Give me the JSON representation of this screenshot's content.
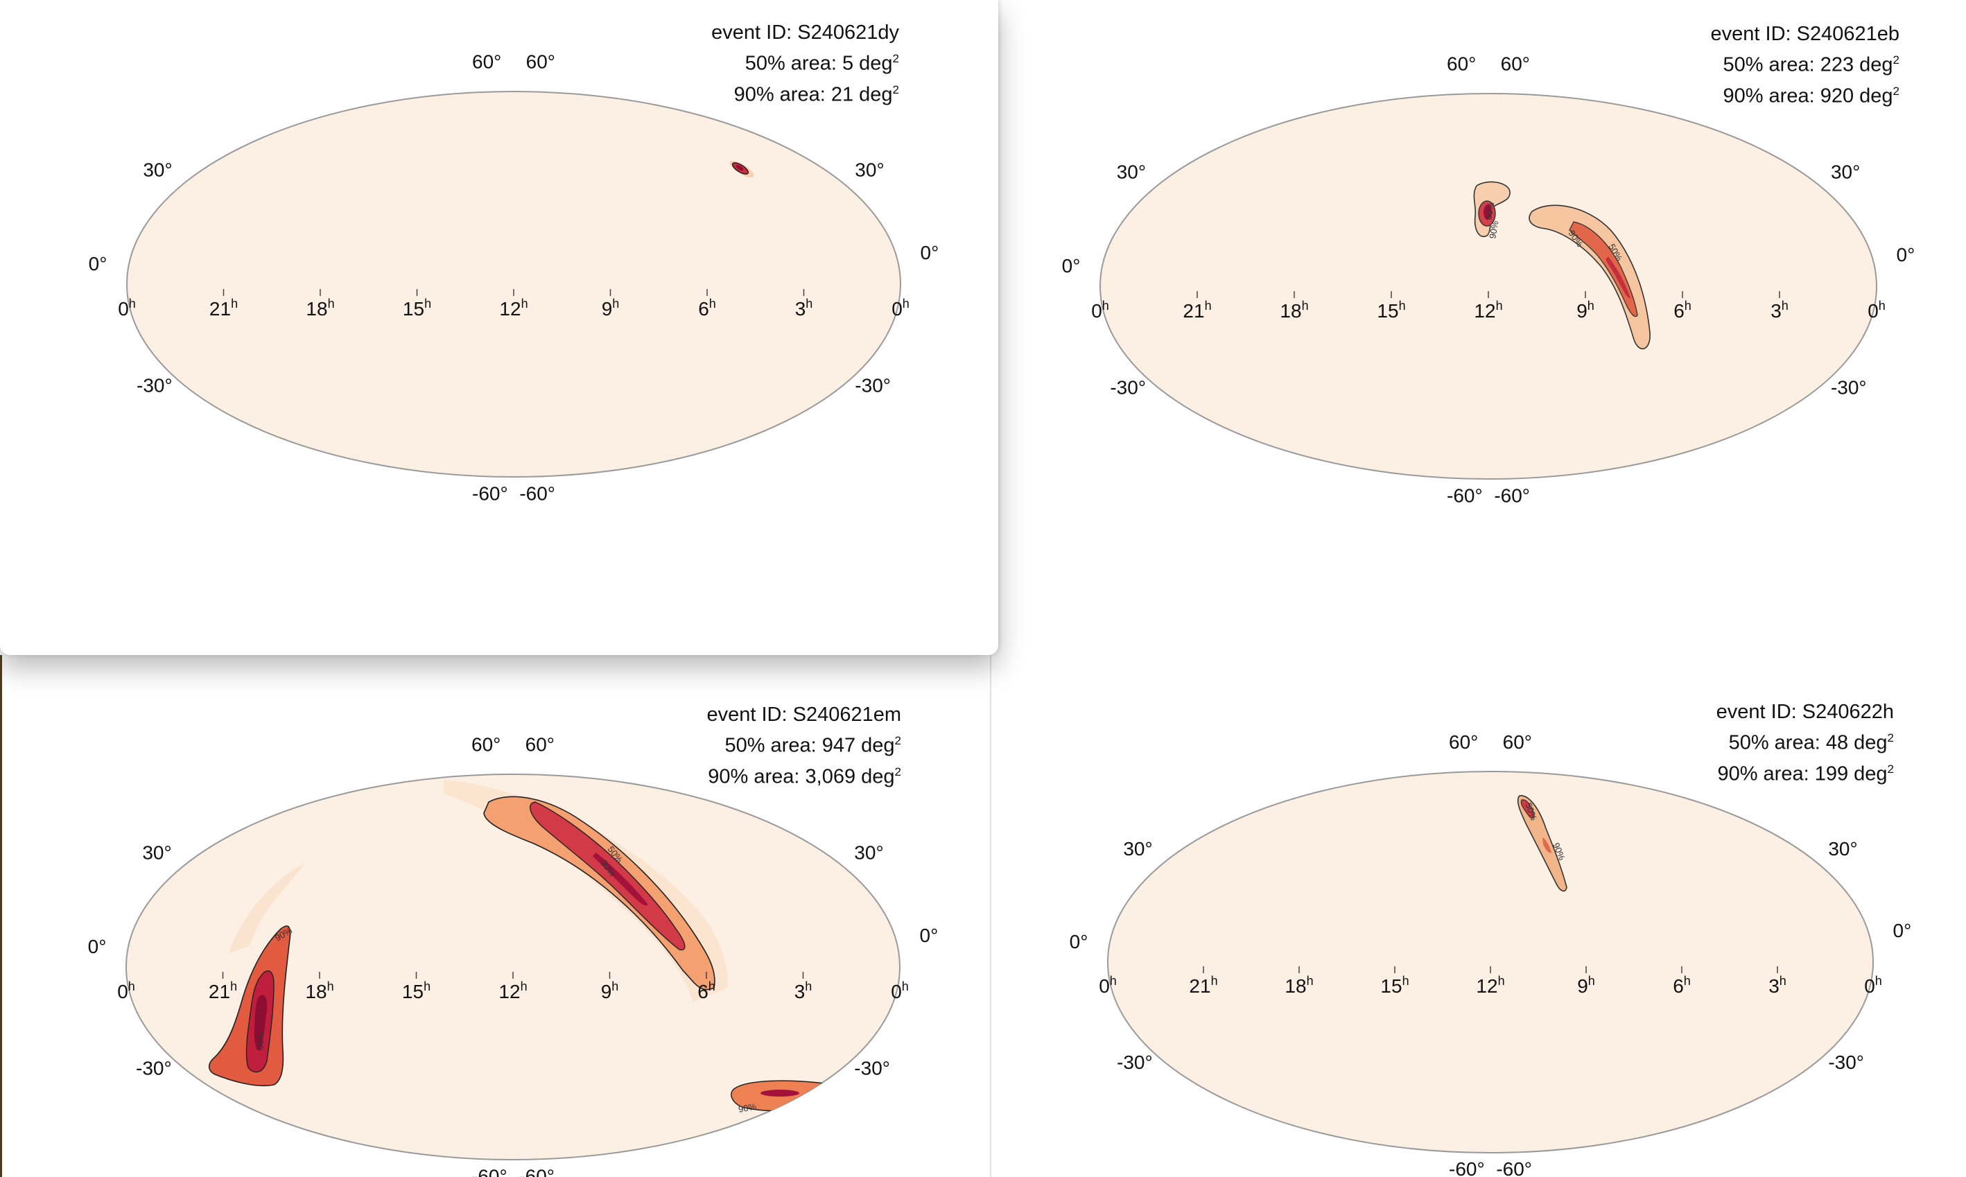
{
  "colors": {
    "map_fill": "#fcefe3",
    "map_outline": "#9a9a9a",
    "prob_mid": "#f08a4a",
    "prob_high": "#d63d3d",
    "prob_peak": "#a3123a",
    "contour": "#222222"
  },
  "grid": {
    "ra_labels": [
      "0",
      "21",
      "18",
      "15",
      "12",
      "9",
      "6",
      "3",
      "0"
    ],
    "ra_unit": "h",
    "dec_labels": {
      "p60": "60°",
      "p30": "30°",
      "zero": "0°",
      "m30": "-30°",
      "m60": "-60°"
    }
  },
  "panels": [
    {
      "event_label": "event ID: S240621dy",
      "area50_label": "50% area: 5 deg",
      "area90_label": "90% area: 21 deg",
      "area_unit_sup": "2",
      "contour_labels": []
    },
    {
      "event_label": "event ID: S240621eb",
      "area50_label": "50% area: 223 deg",
      "area90_label": "90% area: 920 deg",
      "area_unit_sup": "2",
      "contour_labels": [
        "50%",
        "90%",
        "90%",
        "50%"
      ]
    },
    {
      "event_label": "event ID: S240621em",
      "area50_label": "50% area: 947 deg",
      "area90_label": "90% area: 3,069 deg",
      "area_unit_sup": "2",
      "contour_labels": [
        "50%",
        "90%",
        "90%",
        "50%",
        "90%"
      ]
    },
    {
      "event_label": "event ID: S240622h",
      "area50_label": "50% area: 48 deg",
      "area90_label": "90% area: 199 deg",
      "area_unit_sup": "2",
      "contour_labels": [
        "50%",
        "90%"
      ]
    }
  ]
}
